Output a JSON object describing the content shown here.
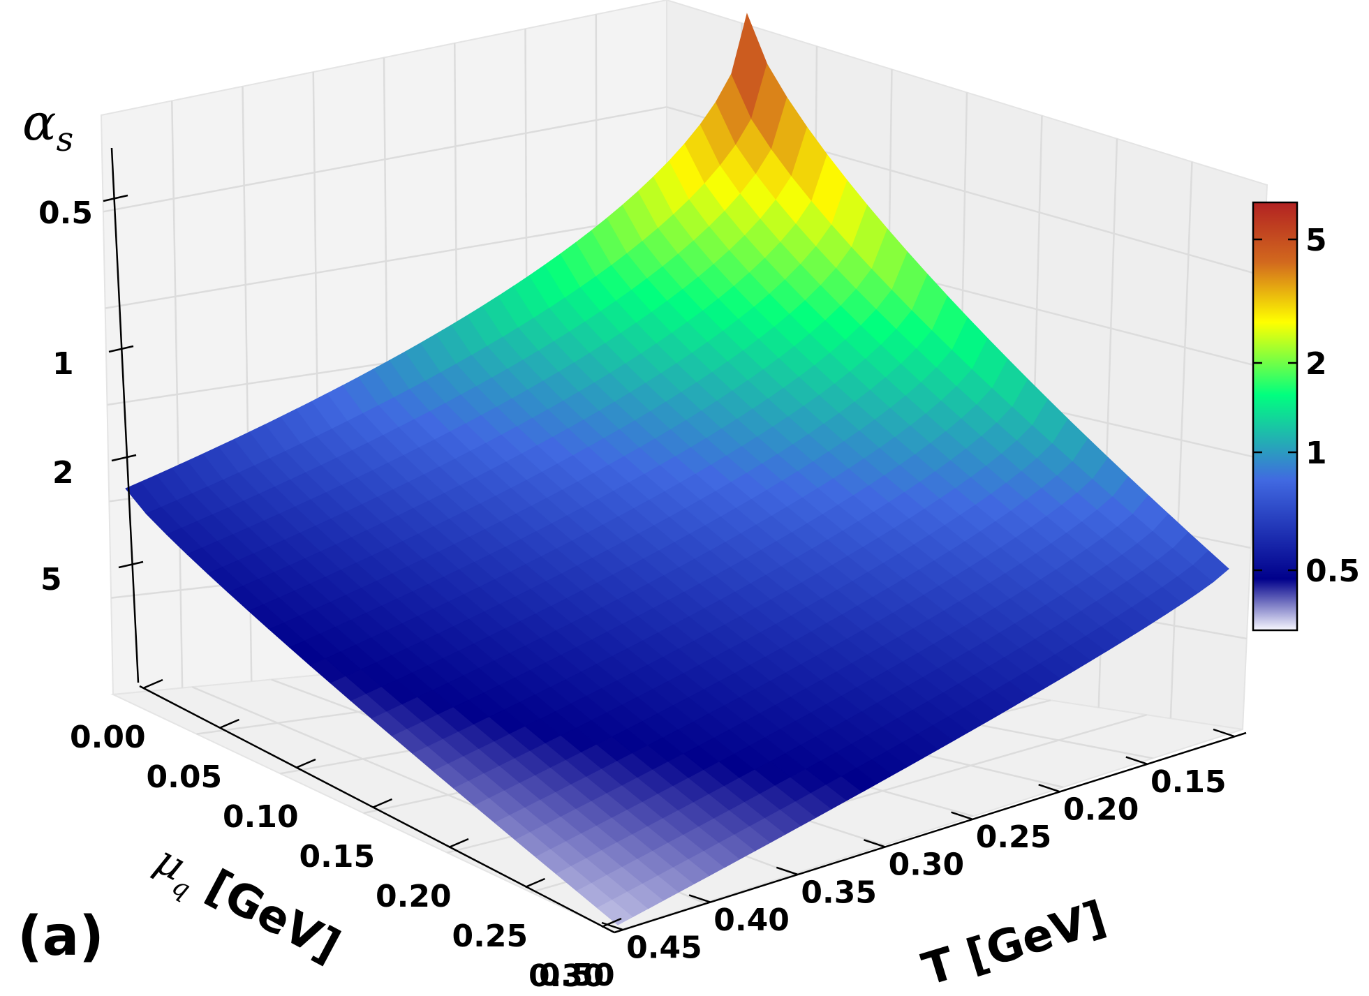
{
  "panel_label": "(a)",
  "chart_data": {
    "type": "surface3d",
    "x_axis": {
      "label": "T [GeV]",
      "ticks": [
        "0.15",
        "0.20",
        "0.25",
        "0.30",
        "0.35",
        "0.40",
        "0.45",
        "0.50"
      ],
      "range": [
        0.15,
        0.5
      ]
    },
    "y_axis": {
      "label": "μq [GeV]",
      "label_symbol": "μ",
      "label_subscript": "q",
      "label_unit": "[GeV]",
      "ticks": [
        "0.00",
        "0.05",
        "0.10",
        "0.15",
        "0.20",
        "0.25",
        "0.30"
      ],
      "range": [
        0.0,
        0.3
      ]
    },
    "z_axis": {
      "label": "αs",
      "label_symbol": "α",
      "label_subscript": "s",
      "ticks": [
        "0.5",
        "1",
        "2",
        "5"
      ],
      "scale": "log"
    },
    "colorbar": {
      "ticks": [
        "0.5",
        "1",
        "2",
        "5"
      ],
      "colormap": [
        "#f8f8ff",
        "#00008b",
        "#4169e1",
        "#00ff7f",
        "#ffff00",
        "#d2691e",
        "#b22222"
      ]
    },
    "corner_values": [
      {
        "T": 0.15,
        "mu": 0.0,
        "alpha_s": 7.0
      },
      {
        "T": 0.5,
        "mu": 0.0,
        "alpha_s": 0.42
      },
      {
        "T": 0.15,
        "mu": 0.3,
        "alpha_s": 0.55
      },
      {
        "T": 0.5,
        "mu": 0.3,
        "alpha_s": 0.22
      }
    ]
  }
}
